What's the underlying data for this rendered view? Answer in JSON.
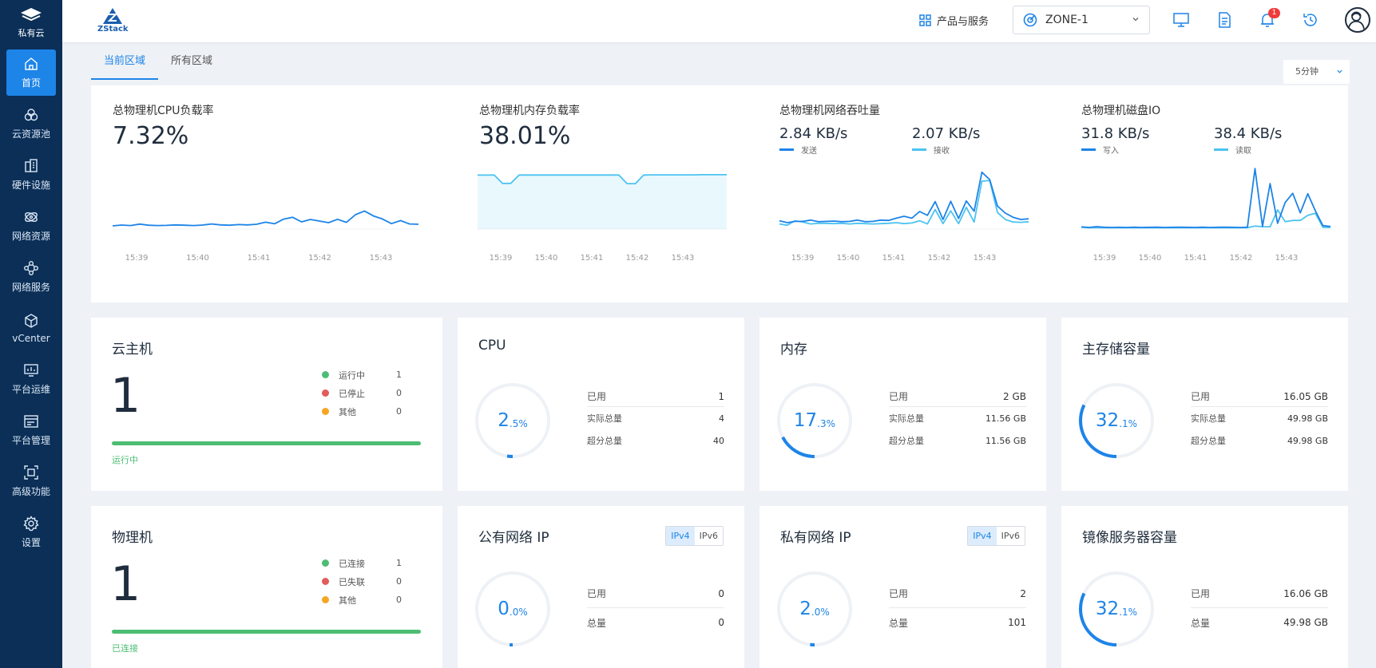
{
  "sidebar": {
    "brand_label": "私有云",
    "items": [
      {
        "label": "首页",
        "icon": "home-icon",
        "active": true
      },
      {
        "label": "云资源池",
        "icon": "resource-pool-icon"
      },
      {
        "label": "硬件设施",
        "icon": "hardware-icon"
      },
      {
        "label": "网络资源",
        "icon": "network-resource-icon"
      },
      {
        "label": "网络服务",
        "icon": "network-service-icon"
      },
      {
        "label": "vCenter",
        "icon": "vcenter-icon"
      },
      {
        "label": "平台运维",
        "icon": "ops-icon"
      },
      {
        "label": "平台管理",
        "icon": "management-icon"
      },
      {
        "label": "高级功能",
        "icon": "advanced-icon"
      },
      {
        "label": "设置",
        "icon": "settings-icon"
      }
    ]
  },
  "topbar": {
    "logo_text": "ZStack",
    "products_label": "产品与服务",
    "zone": "ZONE-1",
    "notification_count": "1"
  },
  "tabs": [
    {
      "label": "当前区域",
      "active": true
    },
    {
      "label": "所有区域",
      "active": false
    }
  ],
  "timeframe": "5分钟",
  "colors": {
    "accent": "#1d84e8",
    "secondary_line": "#4cc3f0",
    "running": "#4dbd74",
    "stopped": "#e25c5c",
    "other": "#f5a623"
  },
  "metrics": {
    "cpu": {
      "title": "总物理机CPU负载率",
      "value": "7.32%"
    },
    "memory": {
      "title": "总物理机内存负载率",
      "value": "38.01%"
    },
    "network": {
      "title": "总物理机网络吞吐量",
      "send_value": "2.84 KB/s",
      "send_label": "发送",
      "recv_value": "2.07 KB/s",
      "recv_label": "接收"
    },
    "disk": {
      "title": "总物理机磁盘IO",
      "write_value": "31.8 KB/s",
      "write_label": "写入",
      "read_value": "38.4 KB/s",
      "read_label": "读取"
    },
    "time_ticks": [
      "15:39",
      "15:40",
      "15:41",
      "15:42",
      "15:43"
    ]
  },
  "chart_data": [
    {
      "type": "line",
      "title": "总物理机CPU负载率",
      "series": [
        {
          "values": [
            2,
            2.5,
            2.2,
            3.1,
            2.4,
            2.2,
            2.3,
            2.6,
            2.4,
            2.2,
            2.5,
            3.2,
            2.6,
            2.4,
            2.8,
            2.6,
            3.0,
            4.3,
            3.3,
            6.2,
            7.4,
            4.5,
            6.0,
            5.0,
            4.0,
            6.1,
            4.2,
            9.0,
            11.3,
            8.2,
            6.3,
            3.4,
            5.3,
            3.2,
            3.0
          ]
        }
      ]
    },
    {
      "type": "area",
      "title": "总物理机内存负载率",
      "series": [
        {
          "values": [
            38,
            38,
            38.1,
            32.2,
            32.2,
            38.1,
            38.1,
            38.1,
            38.1,
            38.1,
            38.1,
            38.1,
            38.1,
            38.1,
            38.1,
            38.1,
            38.1,
            38.1,
            32.0,
            32.0,
            38.1,
            38.2,
            38.2,
            38.2,
            38.2,
            38.2,
            38.2,
            38.3,
            38.3,
            38.3,
            38.3
          ]
        }
      ]
    },
    {
      "type": "line",
      "title": "总物理机网络吞吐量",
      "series": [
        {
          "values": [
            2.6,
            2.0,
            2.4,
            2.4,
            2.8,
            2.3,
            2.4,
            2.5,
            2.3,
            2.4,
            2.8,
            2.3,
            2.4,
            2.8,
            2.7,
            3.4,
            4.0,
            3.4,
            5.5,
            4.3,
            8.6,
            3.0,
            8.7,
            3.3,
            8.8,
            5.6,
            17.8,
            15.5,
            7.2,
            5.0,
            3.7,
            3.0,
            3.2
          ]
        },
        {
          "values": [
            1.6,
            1.2,
            2.6,
            2.2,
            1.6,
            1.8,
            1.8,
            1.7,
            1.8,
            1.6,
            1.8,
            1.7,
            1.6,
            1.7,
            1.8,
            2.0,
            1.7,
            1.9,
            2.6,
            1.6,
            6.1,
            1.7,
            5.7,
            1.7,
            6.8,
            2.2,
            15.0,
            15.2,
            5.2,
            3.0,
            2.2,
            2.1,
            2.3
          ]
        }
      ]
    },
    {
      "type": "line",
      "title": "总物理机磁盘IO",
      "series": [
        {
          "values": [
            1.6,
            1.2,
            1.8,
            1.4,
            1.2,
            1.3,
            1.2,
            1.4,
            1.2,
            1.3,
            1.4,
            1.2,
            1.3,
            1.4,
            1.3,
            1.2,
            1.4,
            1.2,
            1.3,
            1.4,
            1.3,
            1.2,
            1.4,
            45.5,
            2.0,
            34.2,
            4.3,
            20.0,
            26.9,
            12.2,
            26.6,
            13.7,
            2.6,
            1.9
          ]
        },
        {
          "values": [
            1.4,
            1.0,
            1.0,
            1.0,
            1.0,
            1.0,
            1.0,
            1.0,
            1.0,
            1.0,
            1.0,
            1.0,
            1.0,
            1.0,
            1.0,
            1.0,
            1.0,
            1.0,
            1.0,
            1.0,
            1.0,
            1.0,
            1.0,
            2.2,
            1.8,
            1.7,
            14.4,
            5.5,
            6.5,
            6.5,
            10.4,
            11.8,
            1.3,
            1.2
          ]
        }
      ]
    }
  ],
  "vm": {
    "title": "云主机",
    "count": "1",
    "statuses": [
      {
        "label": "运行中",
        "count": "1"
      },
      {
        "label": "已停止",
        "count": "0"
      },
      {
        "label": "其他",
        "count": "0"
      }
    ],
    "bar_label": "运行中",
    "bar_fraction": 1.0
  },
  "host": {
    "title": "物理机",
    "count": "1",
    "statuses": [
      {
        "label": "已连接",
        "count": "1"
      },
      {
        "label": "已失联",
        "count": "0"
      },
      {
        "label": "其他",
        "count": "0"
      }
    ],
    "bar_label": "已连接",
    "bar_fraction": 1.0
  },
  "cpu_card": {
    "title": "CPU",
    "int": "2",
    "dec": ".5%",
    "fraction": 0.025,
    "used_label": "已用",
    "used": "1",
    "actual_label": "实际总量",
    "actual": "4",
    "over_label": "超分总量",
    "over": "40"
  },
  "mem_card": {
    "title": "内存",
    "int": "17",
    "dec": ".3%",
    "fraction": 0.173,
    "used_label": "已用",
    "used": "2 GB",
    "actual_label": "实际总量",
    "actual": "11.56 GB",
    "over_label": "超分总量",
    "over": "11.56 GB"
  },
  "ps_card": {
    "title": "主存储容量",
    "int": "32",
    "dec": ".1%",
    "fraction": 0.321,
    "used_label": "已用",
    "used": "16.05 GB",
    "actual_label": "实际总量",
    "actual": "49.98 GB",
    "over_label": "超分总量",
    "over": "49.98 GB"
  },
  "pub_ip": {
    "title": "公有网络 IP",
    "ipv4": "IPv4",
    "ipv6": "IPv6",
    "int": "0",
    "dec": ".0%",
    "fraction": 0.0,
    "used_label": "已用",
    "used": "0",
    "total_label": "总量",
    "total": "0"
  },
  "priv_ip": {
    "title": "私有网络 IP",
    "ipv4": "IPv4",
    "ipv6": "IPv6",
    "int": "2",
    "dec": ".0%",
    "fraction": 0.02,
    "used_label": "已用",
    "used": "2",
    "total_label": "总量",
    "total": "101"
  },
  "bs_card": {
    "title": "镜像服务器容量",
    "int": "32",
    "dec": ".1%",
    "fraction": 0.321,
    "used_label": "已用",
    "used": "16.06 GB",
    "total_label": "总量",
    "total": "49.98 GB"
  }
}
